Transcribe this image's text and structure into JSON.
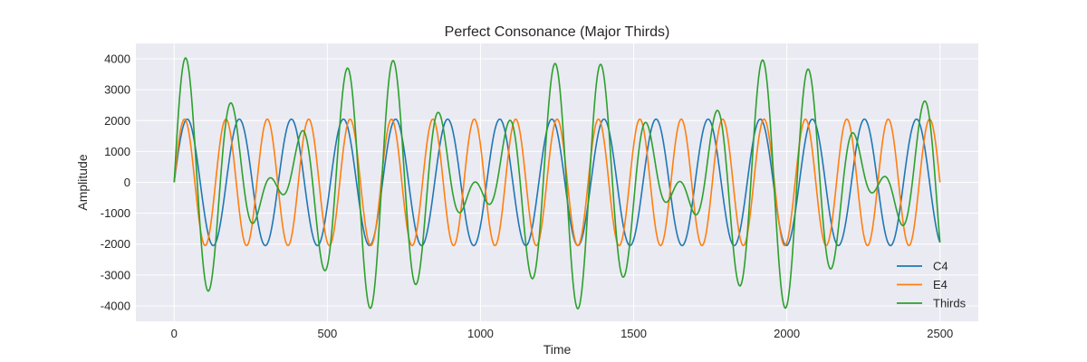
{
  "chart_data": {
    "type": "line",
    "title": "Perfect Consonance (Major Thirds)",
    "xlabel": "Time",
    "ylabel": "Amplitude",
    "xlim": [
      -125,
      2625
    ],
    "ylim": [
      -4500,
      4500
    ],
    "xticks": [
      0,
      500,
      1000,
      1500,
      2000,
      2500
    ],
    "yticks": [
      -4000,
      -3000,
      -2000,
      -1000,
      0,
      1000,
      2000,
      3000,
      4000
    ],
    "grid": true,
    "legend_position": "lower-right",
    "x_range": [
      0,
      2500
    ],
    "series": [
      {
        "name": "C4",
        "color": "#1f77b4",
        "amplitude": 2048,
        "cycles": 14.7
      },
      {
        "name": "E4",
        "color": "#ff7f0e",
        "amplitude": 2048,
        "cycles": 18.5
      },
      {
        "name": "Thirds",
        "color": "#2ca02c",
        "sum_of": [
          "C4",
          "E4"
        ]
      }
    ]
  }
}
